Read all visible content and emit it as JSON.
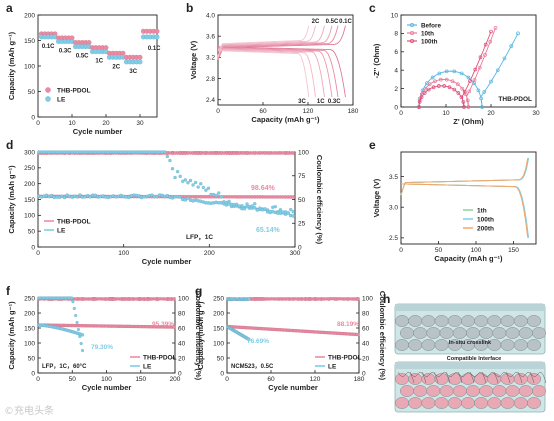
{
  "watermark": "©充电头条",
  "colors": {
    "pink": "#ec8aa3",
    "blue": "#7fcde8",
    "before": "#58b6e4",
    "tenth": "#ea7a9b",
    "hundredth": "#df4f7a",
    "green": "#8fd19e",
    "orange": "#f2a76a"
  },
  "chart_data": [
    {
      "panel": "a",
      "type": "scatter",
      "xlabel": "Cycle number",
      "ylabel": "Capacity (mAh g⁻¹)",
      "xlim": [
        0,
        35
      ],
      "ylim": [
        0,
        200
      ],
      "xticks": [
        "0",
        "10",
        "20",
        "30"
      ],
      "yticks": [
        "0",
        "50",
        "100",
        "150",
        "200"
      ],
      "legend": [
        "THB-PDOL",
        "LE"
      ],
      "legend_position": "bottom-left",
      "annotations": [
        "0.1C",
        "0.3C",
        "0.5C",
        "1C",
        "2C",
        "3C",
        "0.1C"
      ],
      "rate_steps": [
        {
          "label": "0.1C",
          "x": [
            1,
            5
          ],
          "thb": 163,
          "le": 157
        },
        {
          "label": "0.3C",
          "x": [
            6,
            10
          ],
          "thb": 155,
          "le": 148
        },
        {
          "label": "0.5C",
          "x": [
            11,
            15
          ],
          "thb": 146,
          "le": 138
        },
        {
          "label": "1C",
          "x": [
            16,
            20
          ],
          "thb": 136,
          "le": 128
        },
        {
          "label": "2C",
          "x": [
            21,
            25
          ],
          "thb": 125,
          "le": 117
        },
        {
          "label": "3C",
          "x": [
            26,
            30
          ],
          "thb": 117,
          "le": 108
        },
        {
          "label": "0.1C",
          "x": [
            31,
            35
          ],
          "thb": 168,
          "le": 157
        }
      ]
    },
    {
      "panel": "b",
      "type": "line",
      "xlabel": "Capacity (mAh g⁻¹)",
      "ylabel": "Voltage (V)",
      "xlim": [
        0,
        180
      ],
      "ylim": [
        2.3,
        4.0
      ],
      "xticks": [
        "0",
        "60",
        "120",
        "180"
      ],
      "yticks": [
        "2.4",
        "2.8",
        "3.2",
        "3.6",
        "4.0"
      ],
      "charge_labels": [
        "2C",
        "0.5C",
        "0.1C"
      ],
      "discharge_labels": [
        "3C",
        "1C",
        "0.3C"
      ],
      "curves": [
        {
          "rate": "0.1C",
          "capacity": 170
        },
        {
          "rate": "0.3C",
          "capacity": 160
        },
        {
          "rate": "0.5C",
          "capacity": 152
        },
        {
          "rate": "1C",
          "capacity": 142
        },
        {
          "rate": "2C",
          "capacity": 130
        },
        {
          "rate": "3C",
          "capacity": 121
        }
      ]
    },
    {
      "panel": "c",
      "type": "line",
      "xlabel": "Z' (Ohm)",
      "ylabel": "-Z'' (Ohm)",
      "xlim": [
        0,
        30
      ],
      "ylim": [
        0,
        10
      ],
      "xticks": [
        "0",
        "10",
        "20",
        "30"
      ],
      "yticks": [
        "0",
        "2",
        "4",
        "6",
        "8",
        "10"
      ],
      "legend": [
        "Before",
        "10th",
        "100th"
      ],
      "legend_position": "top-left",
      "annotation": "THB-PDOL",
      "series": [
        {
          "name": "Before",
          "arc_start": 4,
          "arc_end": 18,
          "arc_height": 3.9,
          "tail_end": [
            26,
            8
          ]
        },
        {
          "name": "10th",
          "arc_start": 4,
          "arc_end": 15,
          "arc_height": 3.0,
          "tail_end": [
            21,
            8.6
          ]
        },
        {
          "name": "100th",
          "arc_start": 4,
          "arc_end": 14,
          "arc_height": 2.3,
          "tail_end": [
            20,
            8.2
          ]
        }
      ]
    },
    {
      "panel": "d",
      "type": "scatter",
      "xlabel": "Cycle number",
      "ylabel": "Capacity (mAh g⁻¹)",
      "y2label": "Coulombic efficiency (%)",
      "xlim": [
        0,
        300
      ],
      "ylim": [
        0,
        300
      ],
      "y2lim": [
        0,
        100
      ],
      "xticks": [
        "0",
        "100",
        "200",
        "300"
      ],
      "yticks": [
        "0",
        "50",
        "100",
        "150",
        "200",
        "250",
        "300"
      ],
      "y2ticks": [
        "0",
        "25",
        "50",
        "75",
        "100"
      ],
      "legend": [
        "THB-PDOL",
        "LE"
      ],
      "legend_position": "bottom-left",
      "annotations": [
        "98.64%",
        "65.14%",
        "LFP，1C"
      ],
      "series": [
        {
          "name": "THB-PDOL",
          "capacity_start": 160,
          "capacity_end": 158,
          "ce": 100
        },
        {
          "name": "LE",
          "capacity_start": 160,
          "capacity_end": 100,
          "ce": 100,
          "ce_drop": [
            [
              160,
              75
            ],
            [
              230,
              45
            ],
            [
              300,
              40
            ]
          ]
        }
      ]
    },
    {
      "panel": "e",
      "type": "line",
      "xlabel": "Capacity (mAh g⁻¹)",
      "ylabel": "Voltage (V)",
      "xlim": [
        0,
        180
      ],
      "ylim": [
        2.4,
        3.9
      ],
      "xticks": [
        "0",
        "50",
        "100",
        "150"
      ],
      "yticks": [
        "2.5",
        "3.0",
        "3.5"
      ],
      "legend": [
        "1th",
        "100th",
        "200th"
      ],
      "legend_position": "bottom-right",
      "curves": [
        {
          "name": "1th",
          "capacity": 170
        },
        {
          "name": "100th",
          "capacity": 170
        },
        {
          "name": "200th",
          "capacity": 169
        }
      ]
    },
    {
      "panel": "f",
      "type": "scatter",
      "xlabel": "Cycle number",
      "ylabel": "Capacity (mAh g⁻¹)",
      "y2label": "Coulombic efficiency (%)",
      "xlim": [
        0,
        200
      ],
      "ylim": [
        0,
        250
      ],
      "y2lim": [
        0,
        100
      ],
      "xticks": [
        "0",
        "50",
        "100",
        "150",
        "200"
      ],
      "yticks": [
        "0",
        "50",
        "100",
        "150",
        "200",
        "250"
      ],
      "y2ticks": [
        "0",
        "20",
        "40",
        "60",
        "80",
        "100"
      ],
      "legend": [
        "THB-PDOL",
        "LE"
      ],
      "legend_position": "bottom-right",
      "annotations": [
        "95.39%",
        "79.30%",
        "LFP，1C，60°C"
      ],
      "series": [
        {
          "name": "THB-PDOL",
          "capacity_start": 160,
          "capacity_end": 153,
          "ce": 100
        },
        {
          "name": "LE",
          "capacity_start": 160,
          "capacity_end": 127,
          "cycles": 65,
          "ce_drop": [
            [
              55,
              65
            ],
            [
              60,
              40
            ],
            [
              63,
              30
            ]
          ]
        }
      ]
    },
    {
      "panel": "g",
      "type": "scatter",
      "xlabel": "Cycle number",
      "ylabel": "Capacity (mAh g⁻¹)",
      "y2label": "Coulombic efficiency (%)",
      "xlim": [
        0,
        180
      ],
      "ylim": [
        0,
        250
      ],
      "y2lim": [
        0,
        100
      ],
      "xticks": [
        "0",
        "60",
        "120",
        "180"
      ],
      "yticks": [
        "0",
        "50",
        "100",
        "150",
        "200",
        "250"
      ],
      "y2ticks": [
        "0",
        "20",
        "40",
        "60",
        "80",
        "100"
      ],
      "legend": [
        "THB-PDOL",
        "LE"
      ],
      "legend_position": "bottom-right",
      "annotations": [
        "88.19%",
        "76.69%",
        "NCM523，0.5C"
      ],
      "series": [
        {
          "name": "THB-PDOL",
          "capacity_start": 155,
          "capacity_end": 128,
          "ce": 99
        },
        {
          "name": "LE",
          "capacity_start": 155,
          "capacity_end": 112,
          "cycles": 30,
          "ce": 99
        }
      ]
    }
  ],
  "panel_h": {
    "label_top": "In-situ crosslink",
    "label_bottom": "Compatible Interface"
  }
}
